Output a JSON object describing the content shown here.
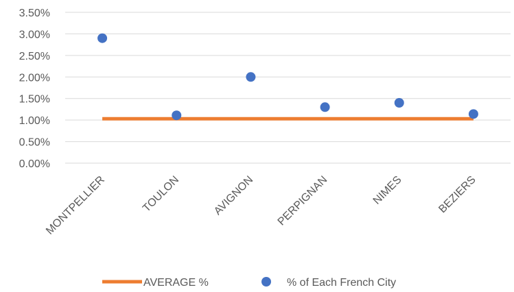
{
  "chart_data": {
    "type": "scatter",
    "categories": [
      "MONTPELLIER",
      "TOULON",
      "AVIGNON",
      "PERPIGNAN",
      "NIMES",
      "BEZIERS"
    ],
    "series": [
      {
        "name": "AVERAGE %",
        "kind": "line",
        "color": "#ED7D31",
        "values": [
          1.03,
          1.03,
          1.03,
          1.03,
          1.03,
          1.03
        ]
      },
      {
        "name": "% of Each French City",
        "kind": "marker",
        "color": "#4472C4",
        "values": [
          2.9,
          1.11,
          2.0,
          1.3,
          1.4,
          1.14
        ]
      }
    ],
    "y_ticks": [
      "0.00%",
      "0.50%",
      "1.00%",
      "1.50%",
      "2.00%",
      "2.50%",
      "3.00%",
      "3.50%"
    ],
    "ylim": [
      0,
      3.5
    ],
    "grid": true,
    "legend_position": "bottom",
    "title": "",
    "xlabel": "",
    "ylabel": ""
  }
}
